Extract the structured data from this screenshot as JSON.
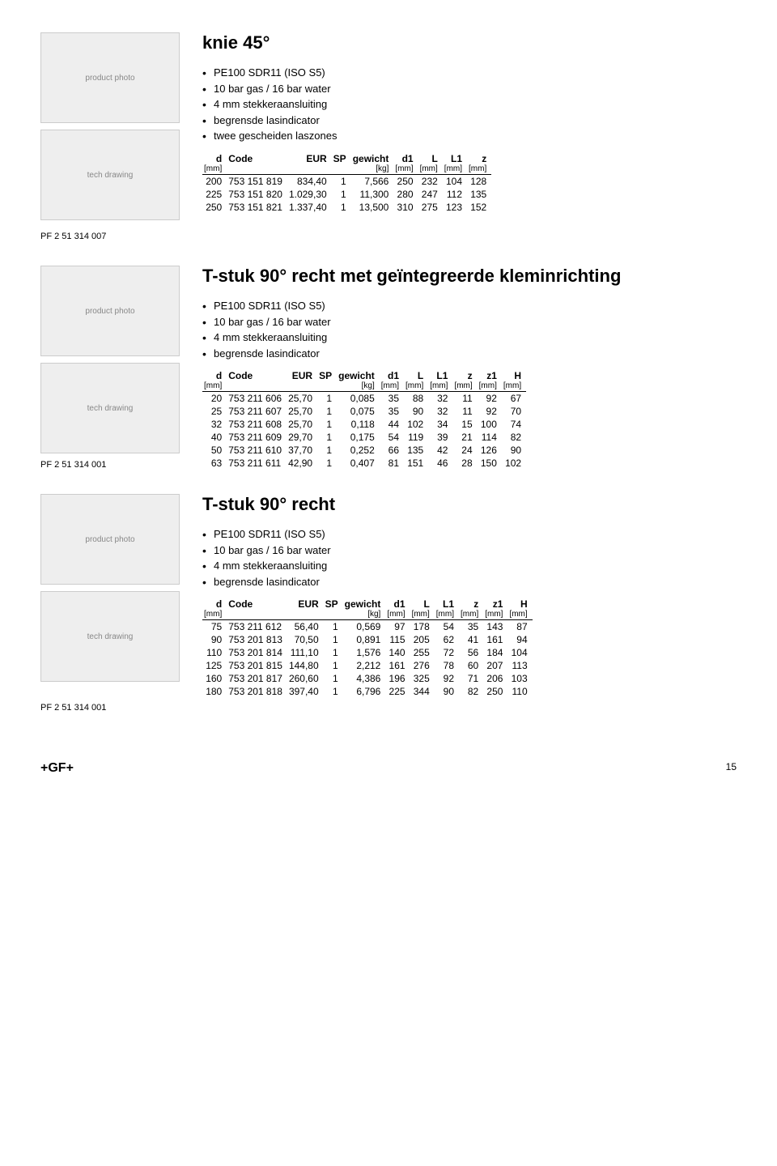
{
  "section1": {
    "title": "knie 45°",
    "bullets": [
      "PE100 SDR11 (ISO S5)",
      "10 bar gas / 16 bar water",
      "4 mm stekkeraansluiting",
      "begrensde lasindicator",
      "twee gescheiden laszones"
    ],
    "headers": {
      "d": "d",
      "d_unit": "[mm]",
      "code": "Code",
      "eur": "EUR",
      "sp": "SP",
      "gewicht": "gewicht",
      "gewicht_unit": "[kg]",
      "d1": "d1",
      "d1_unit": "[mm]",
      "L": "L",
      "L_unit": "[mm]",
      "L1": "L1",
      "L1_unit": "[mm]",
      "z": "z",
      "z_unit": "[mm]"
    },
    "rows": [
      [
        "200",
        "753 151 819",
        "834,40",
        "1",
        "7,566",
        "250",
        "232",
        "104",
        "128"
      ],
      [
        "225",
        "753 151 820",
        "1.029,30",
        "1",
        "11,300",
        "280",
        "247",
        "112",
        "135"
      ],
      [
        "250",
        "753 151 821",
        "1.337,40",
        "1",
        "13,500",
        "310",
        "275",
        "123",
        "152"
      ]
    ],
    "pf": "PF 2 51 314 007"
  },
  "section2": {
    "title": "T-stuk 90° recht met geïntegreerde kleminrichting",
    "bullets": [
      "PE100 SDR11 (ISO S5)",
      "10 bar gas / 16 bar water",
      "4 mm stekkeraansluiting",
      "begrensde lasindicator"
    ],
    "headers": {
      "d": "d",
      "d_unit": "[mm]",
      "code": "Code",
      "eur": "EUR",
      "sp": "SP",
      "gewicht": "gewicht",
      "gewicht_unit": "[kg]",
      "d1": "d1",
      "d1_unit": "[mm]",
      "L": "L",
      "L_unit": "[mm]",
      "L1": "L1",
      "L1_unit": "[mm]",
      "z": "z",
      "z_unit": "[mm]",
      "z1": "z1",
      "z1_unit": "[mm]",
      "H": "H",
      "H_unit": "[mm]"
    },
    "rows": [
      [
        "20",
        "753 211 606",
        "25,70",
        "1",
        "0,085",
        "35",
        "88",
        "32",
        "11",
        "92",
        "67"
      ],
      [
        "25",
        "753 211 607",
        "25,70",
        "1",
        "0,075",
        "35",
        "90",
        "32",
        "11",
        "92",
        "70"
      ],
      [
        "32",
        "753 211 608",
        "25,70",
        "1",
        "0,118",
        "44",
        "102",
        "34",
        "15",
        "100",
        "74"
      ],
      [
        "40",
        "753 211 609",
        "29,70",
        "1",
        "0,175",
        "54",
        "119",
        "39",
        "21",
        "114",
        "82"
      ],
      [
        "50",
        "753 211 610",
        "37,70",
        "1",
        "0,252",
        "66",
        "135",
        "42",
        "24",
        "126",
        "90"
      ],
      [
        "63",
        "753 211 611",
        "42,90",
        "1",
        "0,407",
        "81",
        "151",
        "46",
        "28",
        "150",
        "102"
      ]
    ],
    "pf": "PF 2 51 314 001"
  },
  "section3": {
    "title": "T-stuk 90° recht",
    "bullets": [
      "PE100 SDR11 (ISO S5)",
      "10 bar gas / 16 bar water",
      "4 mm stekkeraansluiting",
      "begrensde lasindicator"
    ],
    "headers": {
      "d": "d",
      "d_unit": "[mm]",
      "code": "Code",
      "eur": "EUR",
      "sp": "SP",
      "gewicht": "gewicht",
      "gewicht_unit": "[kg]",
      "d1": "d1",
      "d1_unit": "[mm]",
      "L": "L",
      "L_unit": "[mm]",
      "L1": "L1",
      "L1_unit": "[mm]",
      "z": "z",
      "z_unit": "[mm]",
      "z1": "z1",
      "z1_unit": "[mm]",
      "H": "H",
      "H_unit": "[mm]"
    },
    "rows": [
      [
        "75",
        "753 211 612",
        "56,40",
        "1",
        "0,569",
        "97",
        "178",
        "54",
        "35",
        "143",
        "87"
      ],
      [
        "90",
        "753 201 813",
        "70,50",
        "1",
        "0,891",
        "115",
        "205",
        "62",
        "41",
        "161",
        "94"
      ],
      [
        "110",
        "753 201 814",
        "111,10",
        "1",
        "1,576",
        "140",
        "255",
        "72",
        "56",
        "184",
        "104"
      ],
      [
        "125",
        "753 201 815",
        "144,80",
        "1",
        "2,212",
        "161",
        "276",
        "78",
        "60",
        "207",
        "113"
      ],
      [
        "160",
        "753 201 817",
        "260,60",
        "1",
        "4,386",
        "196",
        "325",
        "92",
        "71",
        "206",
        "103"
      ],
      [
        "180",
        "753 201 818",
        "397,40",
        "1",
        "6,796",
        "225",
        "344",
        "90",
        "82",
        "250",
        "110"
      ]
    ],
    "pf": "PF 2 51 314 001"
  },
  "footer": {
    "brand": "+GF+",
    "page": "15"
  },
  "placeholders": {
    "photo": "product photo",
    "drawing": "tech drawing"
  }
}
